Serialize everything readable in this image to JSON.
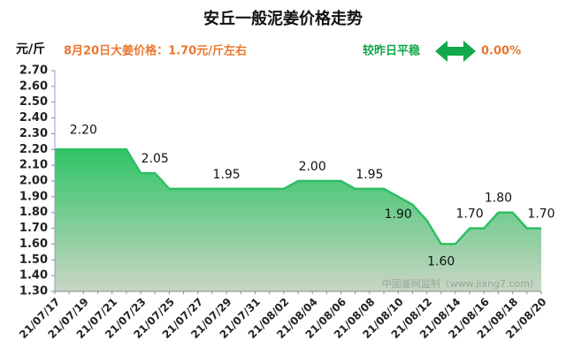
{
  "chart_data": {
    "type": "area",
    "title": "安丘一般泥姜价格走势",
    "y_label": "元/斤",
    "subtitle": "8月20日大姜价格：1.70元/斤左右",
    "change_text": "较昨日平稳",
    "change_value": "0.00%",
    "watermark": "中国姜网监制（www.jiang7.com）",
    "color": "#2dbf62",
    "categories": [
      "21/07/17",
      null,
      "21/07/19",
      null,
      "21/07/21",
      null,
      "21/07/23",
      null,
      "21/07/25",
      null,
      "21/07/27",
      null,
      "21/07/29",
      null,
      "21/07/31",
      null,
      "21/08/02",
      null,
      "21/08/04",
      null,
      "21/08/06",
      null,
      "21/08/08",
      null,
      "21/08/10",
      null,
      "21/08/12",
      null,
      "21/08/14",
      null,
      "21/08/16",
      null,
      "21/08/18",
      null,
      "21/08/20"
    ],
    "values": [
      2.2,
      2.2,
      2.2,
      2.2,
      2.2,
      2.2,
      2.05,
      2.05,
      1.95,
      1.95,
      1.95,
      1.95,
      1.95,
      1.95,
      1.95,
      1.95,
      1.95,
      2.0,
      2.0,
      2.0,
      2.0,
      1.95,
      1.95,
      1.95,
      1.9,
      1.85,
      1.75,
      1.6,
      1.6,
      1.7,
      1.7,
      1.8,
      1.8,
      1.7,
      1.7
    ],
    "value_labels": [
      null,
      null,
      "2.20",
      null,
      null,
      null,
      null,
      "2.05",
      null,
      null,
      null,
      null,
      "1.95",
      null,
      null,
      null,
      null,
      null,
      "2.00",
      null,
      null,
      null,
      "1.95",
      null,
      "1.90",
      null,
      null,
      "1.60",
      null,
      "1.70",
      null,
      "1.80",
      null,
      null,
      "1.70"
    ],
    "ylim": [
      1.3,
      2.7
    ],
    "yticks": [
      {
        "value": 1.3,
        "label": "1.30"
      },
      {
        "value": 1.4,
        "label": "1.40"
      },
      {
        "value": 1.5,
        "label": "1.50"
      },
      {
        "value": 1.6,
        "label": "1.60"
      },
      {
        "value": 1.7,
        "label": "1.70"
      },
      {
        "value": 1.8,
        "label": "1.80"
      },
      {
        "value": 1.9,
        "label": "1.90"
      },
      {
        "value": 2.0,
        "label": "2.00"
      },
      {
        "value": 2.1,
        "label": "2.10"
      },
      {
        "value": 2.2,
        "label": "2.20"
      },
      {
        "value": 2.3,
        "label": "2.30"
      },
      {
        "value": 2.4,
        "label": "2.40"
      },
      {
        "value": 2.5,
        "label": "2.50"
      },
      {
        "value": 2.6,
        "label": "2.60"
      },
      {
        "value": 2.7,
        "label": "2.70"
      }
    ],
    "grid": false
  }
}
